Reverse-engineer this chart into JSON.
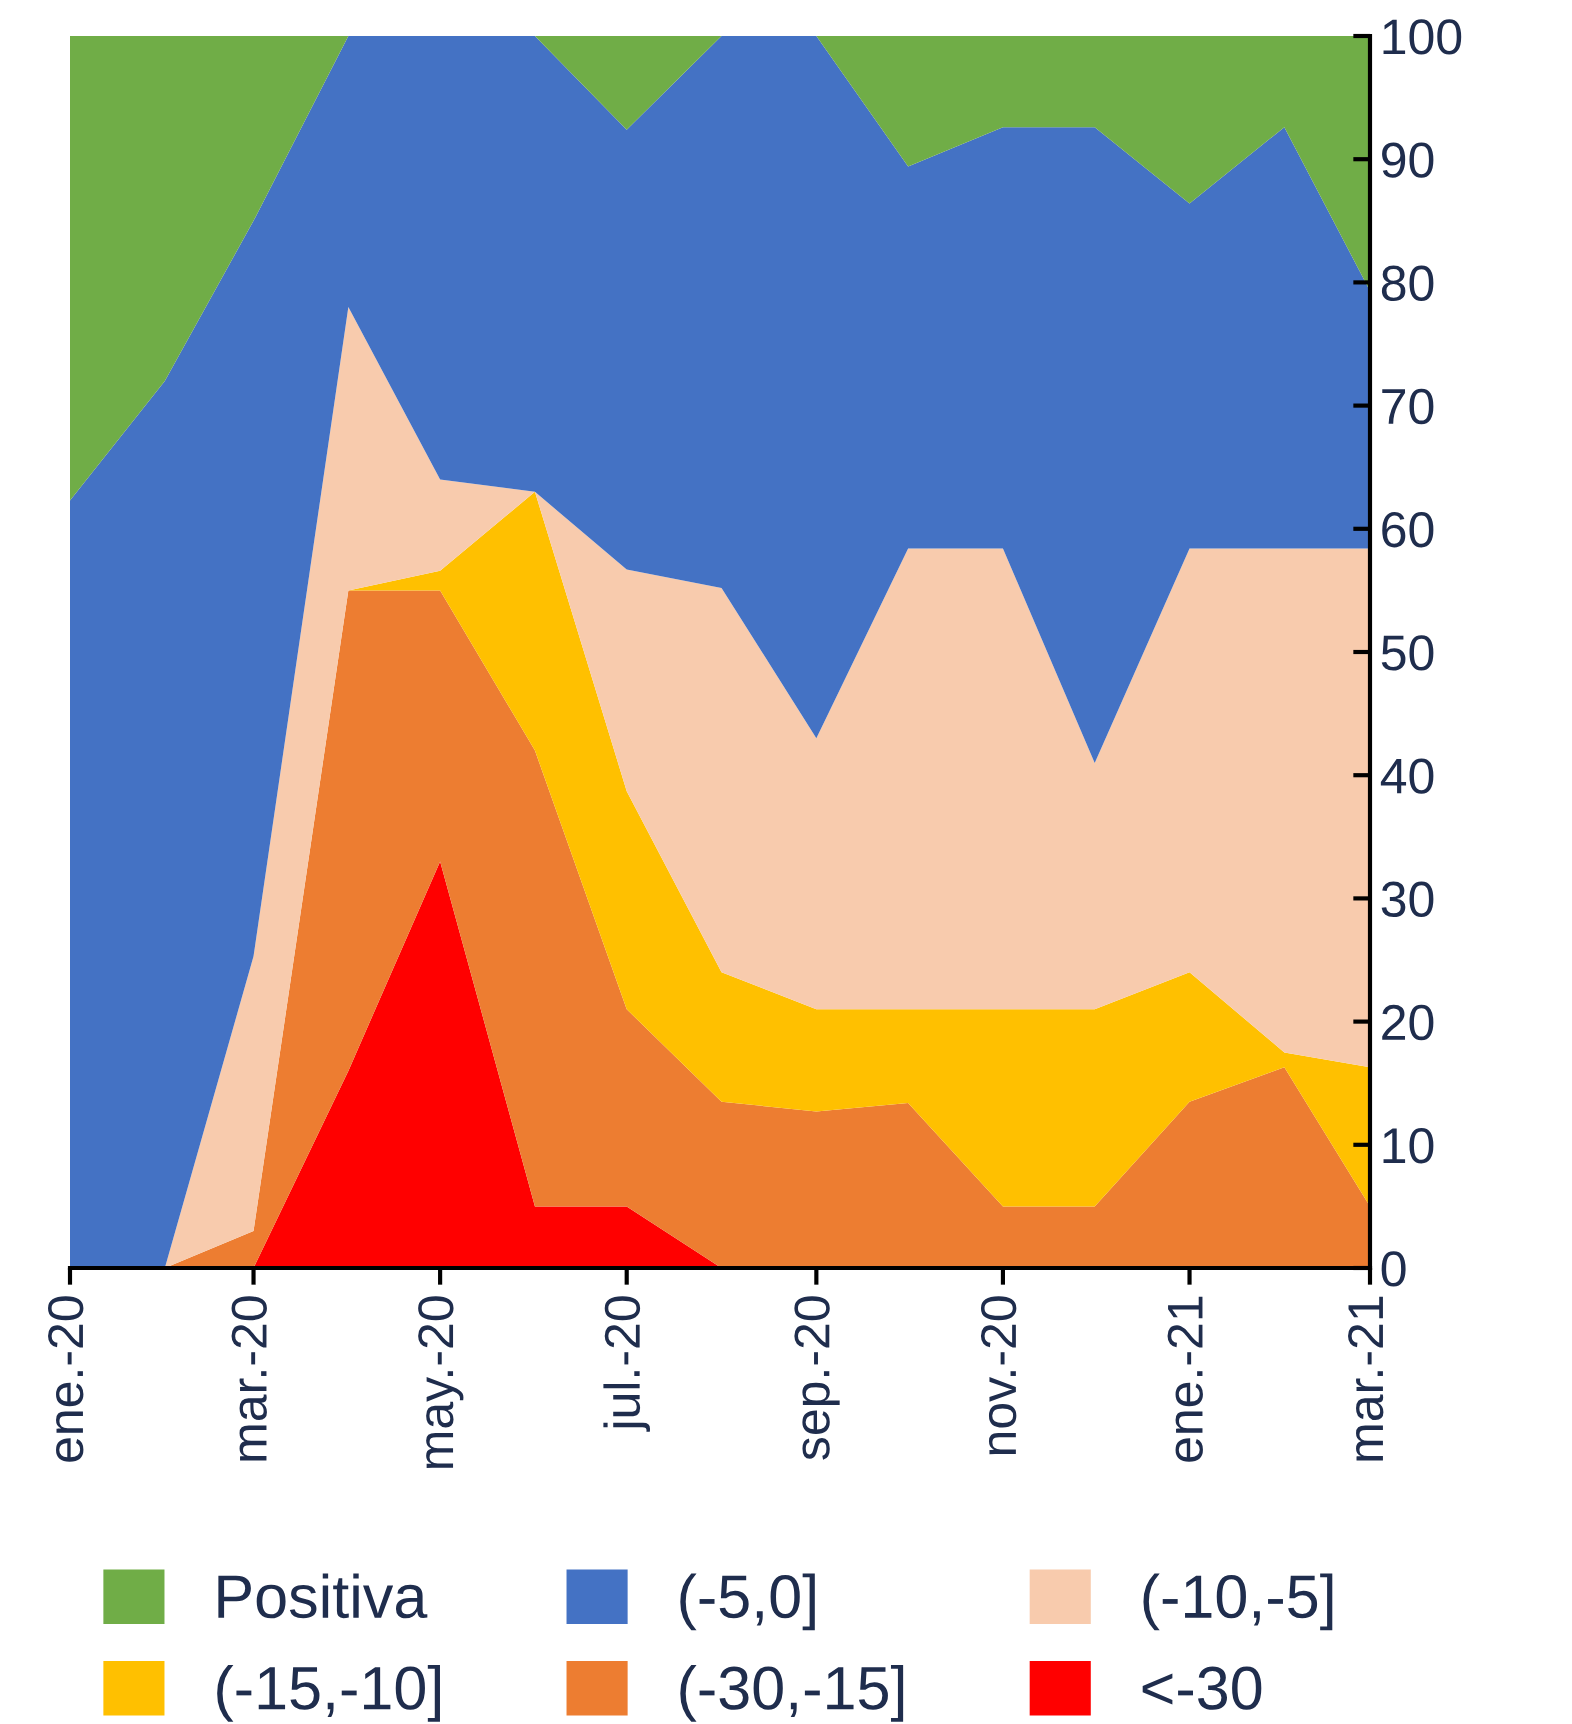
{
  "chart_data": {
    "type": "area",
    "stacked": true,
    "x": [
      "2020-01",
      "2020-02",
      "2020-03",
      "2020-04",
      "2020-05",
      "2020-06",
      "2020-07",
      "2020-08",
      "2020-09",
      "2020-10",
      "2020-11",
      "2020-12",
      "2021-01",
      "2021-02",
      "2021-03"
    ],
    "series": [
      {
        "name": "<-30",
        "color": "#ff0000",
        "values": [
          0,
          0,
          0,
          16,
          33,
          5,
          5,
          0,
          0,
          0,
          0,
          0,
          0,
          0,
          0
        ]
      },
      {
        "name": "(-30,-15]",
        "color": "#ed7d31",
        "values": [
          0,
          0,
          3,
          39,
          22,
          37,
          16,
          13.5,
          12.7,
          13.4,
          5,
          5,
          13.5,
          16.3,
          5
        ]
      },
      {
        "name": "(-15,-10]",
        "color": "#ffc000",
        "values": [
          0,
          0,
          0,
          0,
          1.6,
          21,
          17.7,
          10.5,
          8.3,
          7.6,
          16,
          16,
          10.5,
          1.2,
          11.3
        ]
      },
      {
        "name": "(-10,-5]",
        "color": "#f8cbad",
        "values": [
          0,
          0,
          22.3,
          23,
          7.4,
          0,
          18,
          31.2,
          22,
          37.4,
          37.4,
          20,
          34.4,
          40.9,
          42.1
        ]
      },
      {
        "name": "(-5,0]",
        "color": "#4472c4",
        "values": [
          62.3,
          72,
          59.7,
          22,
          36,
          37,
          35.7,
          44.8,
          57,
          31,
          34.2,
          51.6,
          28,
          34.2,
          20.9
        ]
      },
      {
        "name": "Positiva",
        "color": "#70ad47",
        "values": [
          37.7,
          28,
          15,
          0,
          0,
          0,
          7.6,
          0,
          0,
          10.6,
          7.4,
          7.4,
          13.6,
          7.4,
          20.7
        ]
      }
    ],
    "xlim": [
      "2020-01",
      "2021-03"
    ],
    "xticks": [
      {
        "value": "2020-01",
        "label": "ene.-20"
      },
      {
        "value": "2020-03",
        "label": "mar.-20"
      },
      {
        "value": "2020-05",
        "label": "may.-20"
      },
      {
        "value": "2020-07",
        "label": "jul.-20"
      },
      {
        "value": "2020-09",
        "label": "sep.-20"
      },
      {
        "value": "2020-11",
        "label": "nov.-20"
      },
      {
        "value": "2021-01",
        "label": "ene.-21"
      },
      {
        "value": "2021-03",
        "label": "mar.-21"
      }
    ],
    "ylim": [
      0,
      100
    ],
    "yticks": [
      0,
      10,
      20,
      30,
      40,
      50,
      60,
      70,
      80,
      90,
      100
    ],
    "grid": false,
    "legend": "bottom"
  }
}
